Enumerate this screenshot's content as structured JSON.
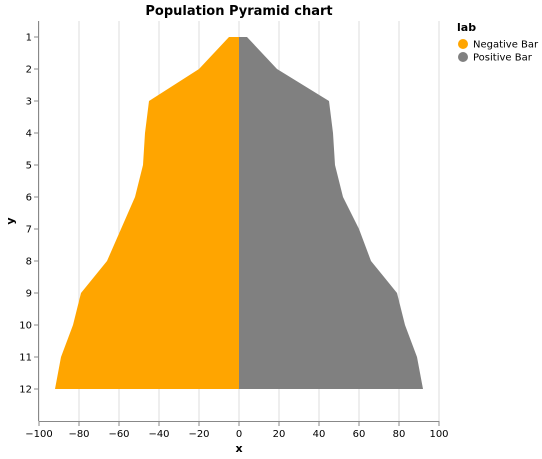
{
  "chart_data": {
    "type": "area",
    "orientation": "horizontal",
    "title": "Population Pyramid chart",
    "xlabel": "x",
    "ylabel": "y",
    "xlim": [
      -100,
      100
    ],
    "x_ticks": [
      -100,
      -80,
      -60,
      -40,
      -20,
      0,
      20,
      40,
      60,
      80,
      100
    ],
    "x_tick_labels": [
      "−100",
      "−80",
      "−60",
      "−40",
      "−20",
      "0",
      "20",
      "40",
      "60",
      "80",
      "100"
    ],
    "categories": [
      1,
      2,
      3,
      4,
      5,
      6,
      7,
      8,
      9,
      10,
      11,
      12
    ],
    "category_labels": [
      "1",
      "2",
      "3",
      "4",
      "5",
      "6",
      "7",
      "8",
      "9",
      "10",
      "11",
      "12"
    ],
    "grid": true,
    "legend_title": "lab",
    "legend_position": "top-right",
    "series": [
      {
        "name": "Negative Bar",
        "color": "#FFA500",
        "values": [
          -5,
          -20,
          -45,
          -47,
          -48,
          -52,
          -59,
          -66,
          -79,
          -83,
          -89,
          -92
        ]
      },
      {
        "name": "Positive Bar",
        "color": "#808080",
        "values": [
          4,
          19,
          45,
          47,
          48,
          52,
          60,
          66,
          79,
          83,
          89,
          92
        ]
      }
    ]
  }
}
